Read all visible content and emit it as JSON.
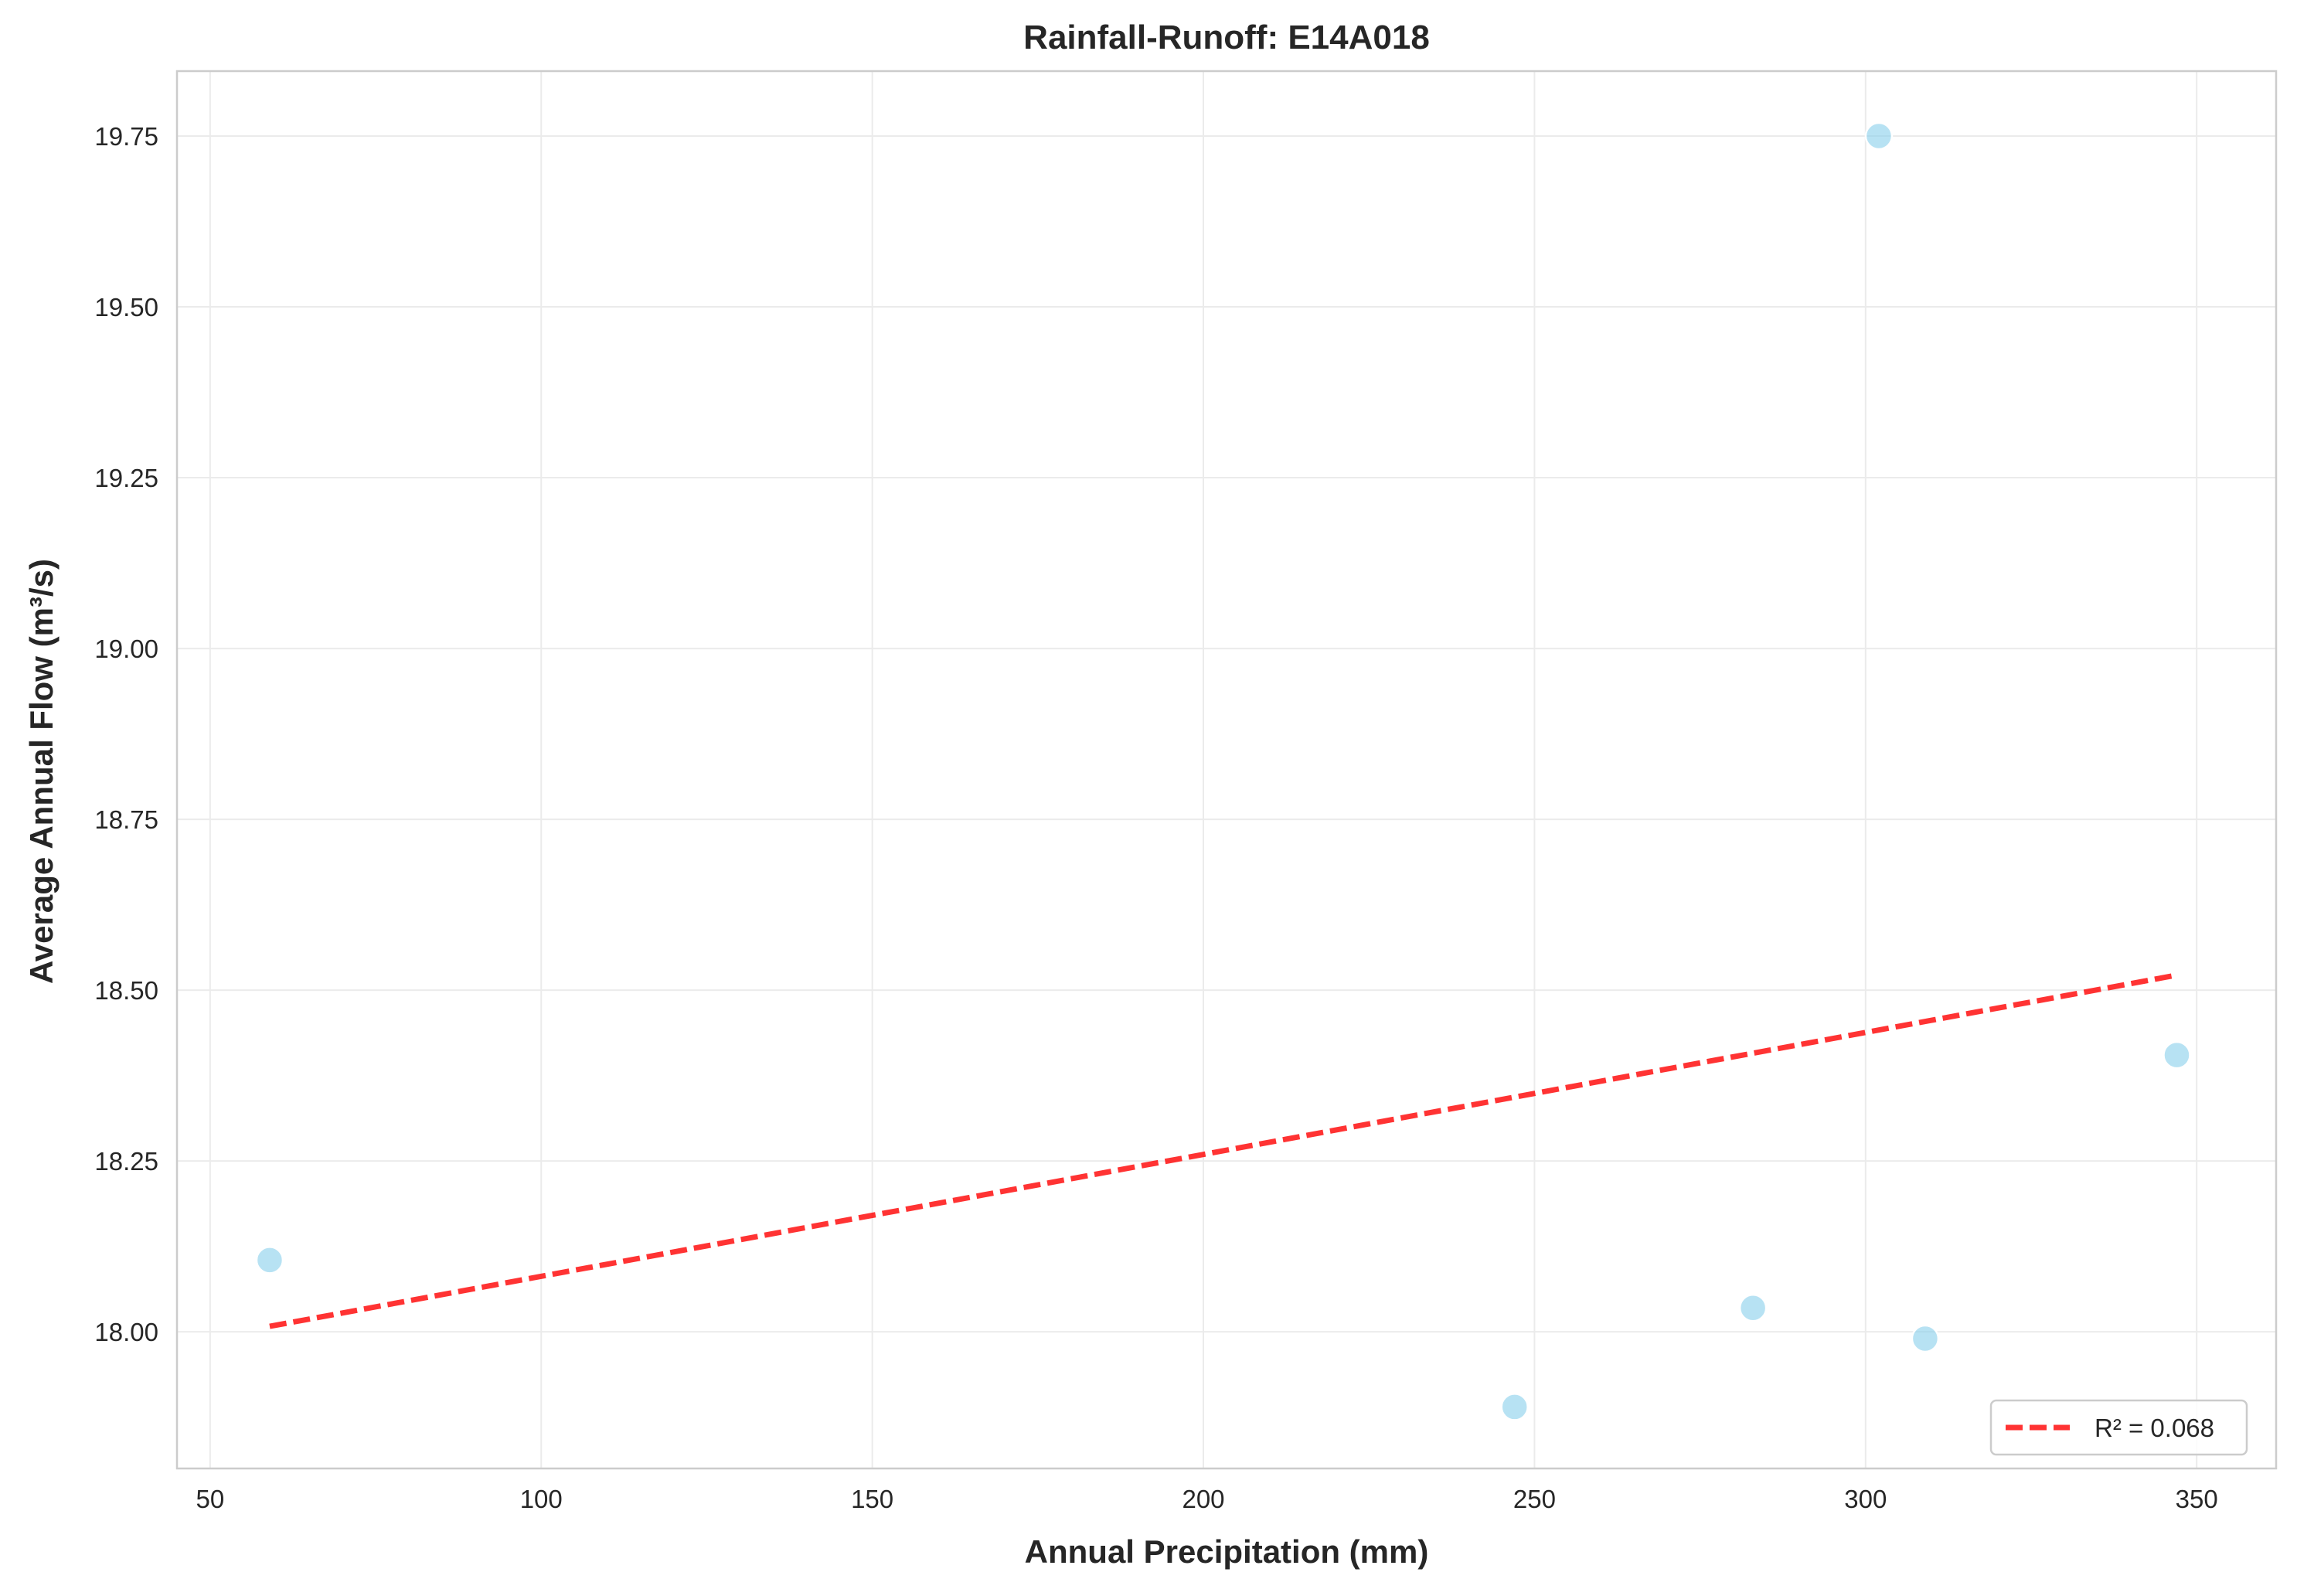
{
  "chart_data": {
    "type": "scatter",
    "title": "Rainfall-Runoff: E14A018",
    "xlabel": "Annual Precipitation (mm)",
    "ylabel": "Average Annual Flow (m³/s)",
    "xlim": [
      45,
      362
    ],
    "ylim": [
      17.8,
      19.845
    ],
    "x_ticks": [
      50,
      100,
      150,
      200,
      250,
      300,
      350
    ],
    "x_tick_labels": [
      "50",
      "100",
      "150",
      "200",
      "250",
      "300",
      "350"
    ],
    "y_ticks": [
      18.0,
      18.25,
      18.5,
      18.75,
      19.0,
      19.25,
      19.5,
      19.75
    ],
    "y_tick_labels": [
      "18.00",
      "18.25",
      "18.50",
      "18.75",
      "19.00",
      "19.25",
      "19.50",
      "19.75"
    ],
    "grid": true,
    "legend_position": "lower-right",
    "series": [
      {
        "kind": "points",
        "color": "#87ceeb",
        "points": [
          {
            "x": 59,
            "y": 18.105
          },
          {
            "x": 247,
            "y": 17.89
          },
          {
            "x": 283,
            "y": 18.035
          },
          {
            "x": 302,
            "y": 19.75
          },
          {
            "x": 309,
            "y": 17.99
          },
          {
            "x": 347,
            "y": 18.405
          }
        ]
      },
      {
        "kind": "trendline",
        "name": "R² = 0.068",
        "color": "#ff0000",
        "style": "dashed",
        "points": [
          {
            "x": 59,
            "y": 18.008
          },
          {
            "x": 347,
            "y": 18.522
          }
        ]
      }
    ]
  }
}
